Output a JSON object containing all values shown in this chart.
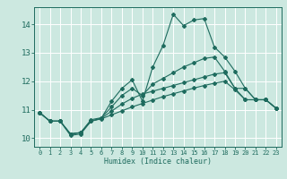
{
  "xlabel": "Humidex (Indice chaleur)",
  "xlim": [
    -0.5,
    23.5
  ],
  "ylim": [
    9.7,
    14.6
  ],
  "yticks": [
    10,
    11,
    12,
    13,
    14
  ],
  "xticks": [
    0,
    1,
    2,
    3,
    4,
    5,
    6,
    7,
    8,
    9,
    10,
    11,
    12,
    13,
    14,
    15,
    16,
    17,
    18,
    19,
    20,
    21,
    22,
    23
  ],
  "bg_color": "#cce8e0",
  "line_color": "#1e6b5e",
  "grid_color": "#ffffff",
  "lines": [
    {
      "x": [
        0,
        1,
        2,
        3,
        4,
        5,
        6,
        7,
        8,
        9,
        10,
        11,
        12,
        13,
        14,
        15,
        16,
        17,
        18,
        19,
        20,
        21,
        22,
        23
      ],
      "y": [
        10.9,
        10.6,
        10.6,
        10.1,
        10.15,
        10.6,
        10.7,
        11.3,
        11.75,
        12.05,
        11.3,
        12.5,
        13.25,
        14.35,
        13.95,
        14.15,
        14.2,
        13.2,
        12.85,
        12.35,
        11.75,
        11.35,
        11.35,
        11.05
      ]
    },
    {
      "x": [
        0,
        1,
        2,
        3,
        4,
        5,
        6,
        7,
        8,
        9,
        10,
        11,
        12,
        13,
        14,
        15,
        16,
        17,
        18,
        19,
        20,
        21,
        22,
        23
      ],
      "y": [
        10.9,
        10.6,
        10.6,
        10.15,
        10.2,
        10.65,
        10.72,
        11.1,
        11.5,
        11.75,
        11.5,
        11.9,
        12.1,
        12.3,
        12.5,
        12.65,
        12.8,
        12.85,
        12.35,
        11.75,
        11.75,
        11.35,
        11.35,
        11.05
      ]
    },
    {
      "x": [
        0,
        1,
        2,
        3,
        4,
        5,
        6,
        7,
        8,
        9,
        10,
        11,
        12,
        13,
        14,
        15,
        16,
        17,
        18,
        19,
        20,
        21,
        22,
        23
      ],
      "y": [
        10.9,
        10.6,
        10.6,
        10.15,
        10.2,
        10.6,
        10.7,
        10.95,
        11.2,
        11.4,
        11.55,
        11.65,
        11.75,
        11.85,
        11.95,
        12.05,
        12.15,
        12.25,
        12.3,
        11.75,
        11.35,
        11.35,
        11.35,
        11.05
      ]
    },
    {
      "x": [
        0,
        1,
        2,
        3,
        4,
        5,
        6,
        7,
        8,
        9,
        10,
        11,
        12,
        13,
        14,
        15,
        16,
        17,
        18,
        19,
        20,
        21,
        22,
        23
      ],
      "y": [
        10.9,
        10.6,
        10.6,
        10.15,
        10.2,
        10.6,
        10.68,
        10.82,
        10.96,
        11.1,
        11.22,
        11.34,
        11.46,
        11.56,
        11.66,
        11.76,
        11.85,
        11.93,
        12.0,
        11.7,
        11.35,
        11.35,
        11.35,
        11.05
      ]
    }
  ]
}
